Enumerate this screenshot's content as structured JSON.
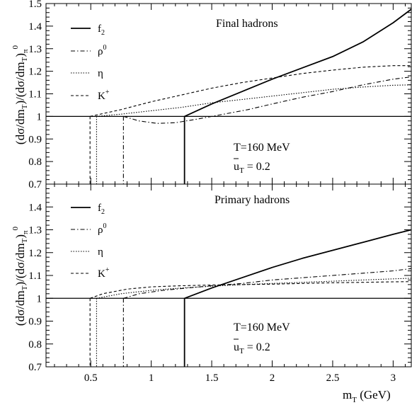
{
  "chart_data": [
    {
      "type": "line",
      "panel": "top",
      "title": "Final hadrons",
      "ylabel": "(dσ/dm_T)/(dσ/dm_T)_π^0",
      "xlim": [
        0.13,
        3.15
      ],
      "ylim": [
        0.7,
        1.5
      ],
      "yticks": [
        0.7,
        0.8,
        0.9,
        1.0,
        1.1,
        1.2,
        1.3,
        1.4,
        1.5
      ],
      "ytick_labels": [
        "0.7",
        "0.8",
        "0.9",
        "1",
        "1.1",
        "1.2",
        "1.3",
        "1.4",
        "1.5"
      ],
      "reference_line": 1.0,
      "annotations": [
        "T=160 MeV",
        "u_T = 0.2"
      ],
      "legend_placement": "top-left",
      "series": [
        {
          "name": "f_2",
          "style": "solid",
          "threshold": 1.275,
          "x": [
            1.275,
            1.5,
            1.75,
            2.0,
            2.25,
            2.5,
            2.75,
            3.0,
            3.15
          ],
          "y": [
            1.0,
            1.055,
            1.11,
            1.165,
            1.215,
            1.265,
            1.33,
            1.415,
            1.475
          ]
        },
        {
          "name": "ρ^0",
          "style": "dash-dot",
          "threshold": 0.77,
          "x": [
            0.77,
            0.9,
            1.05,
            1.2,
            1.4,
            1.6,
            1.8,
            2.0,
            2.25,
            2.5,
            2.75,
            3.0,
            3.15
          ],
          "y": [
            1.0,
            0.98,
            0.969,
            0.972,
            0.99,
            1.01,
            1.03,
            1.055,
            1.085,
            1.11,
            1.14,
            1.165,
            1.175
          ]
        },
        {
          "name": "η",
          "style": "dotted",
          "threshold": 0.548,
          "x": [
            0.548,
            0.75,
            1.0,
            1.25,
            1.5,
            1.75,
            2.0,
            2.25,
            2.5,
            2.75,
            3.0,
            3.15
          ],
          "y": [
            1.0,
            1.01,
            1.025,
            1.04,
            1.06,
            1.075,
            1.09,
            1.105,
            1.12,
            1.13,
            1.138,
            1.14
          ]
        },
        {
          "name": "K^+",
          "style": "dashed",
          "threshold": 0.494,
          "x": [
            0.494,
            0.75,
            1.0,
            1.25,
            1.5,
            1.75,
            2.0,
            2.25,
            2.5,
            2.75,
            3.0,
            3.15
          ],
          "y": [
            1.0,
            1.03,
            1.065,
            1.095,
            1.125,
            1.15,
            1.17,
            1.19,
            1.205,
            1.218,
            1.225,
            1.225
          ]
        }
      ]
    },
    {
      "type": "line",
      "panel": "bottom",
      "title": "Primary hadrons",
      "xlabel": "m_T (GeV)",
      "ylabel": "(dσ/dm_T)/(dσ/dm_T)_π^0",
      "xlim": [
        0.13,
        3.15
      ],
      "ylim": [
        0.7,
        1.5
      ],
      "xticks": [
        0.5,
        1.0,
        1.5,
        2.0,
        2.5,
        3.0
      ],
      "xtick_labels": [
        "0.5",
        "1",
        "1.5",
        "2",
        "2.5",
        "3"
      ],
      "yticks": [
        0.7,
        0.8,
        0.9,
        1.0,
        1.1,
        1.2,
        1.3,
        1.4
      ],
      "ytick_labels": [
        "0.7",
        "0.8",
        "0.9",
        "1",
        "1.1",
        "1.2",
        "1.3",
        "1.4"
      ],
      "reference_line": 1.0,
      "annotations": [
        "T=160 MeV",
        "u_T = 0.2"
      ],
      "legend_placement": "top-left",
      "series": [
        {
          "name": "f_2",
          "style": "solid",
          "threshold": 1.275,
          "x": [
            1.275,
            1.5,
            1.75,
            2.0,
            2.25,
            2.5,
            2.75,
            3.0,
            3.15
          ],
          "y": [
            1.0,
            1.045,
            1.09,
            1.135,
            1.175,
            1.21,
            1.245,
            1.28,
            1.3
          ]
        },
        {
          "name": "ρ^0",
          "style": "dash-dot",
          "threshold": 0.77,
          "x": [
            0.77,
            0.9,
            1.1,
            1.3,
            1.5,
            1.75,
            2.0,
            2.25,
            2.5,
            2.75,
            3.0,
            3.15
          ],
          "y": [
            1.0,
            1.02,
            1.035,
            1.045,
            1.055,
            1.065,
            1.08,
            1.09,
            1.1,
            1.11,
            1.12,
            1.13
          ]
        },
        {
          "name": "η",
          "style": "dotted",
          "threshold": 0.548,
          "x": [
            0.548,
            0.75,
            1.0,
            1.25,
            1.5,
            1.75,
            2.0,
            2.25,
            2.5,
            2.75,
            3.0,
            3.15
          ],
          "y": [
            1.0,
            1.02,
            1.035,
            1.045,
            1.053,
            1.06,
            1.065,
            1.07,
            1.075,
            1.08,
            1.085,
            1.088
          ]
        },
        {
          "name": "K^+",
          "style": "dashed",
          "threshold": 0.494,
          "x": [
            0.494,
            0.6,
            0.8,
            1.0,
            1.25,
            1.5,
            1.75,
            2.0,
            2.25,
            2.5,
            2.75,
            3.0,
            3.15
          ],
          "y": [
            1.0,
            1.02,
            1.04,
            1.05,
            1.055,
            1.058,
            1.06,
            1.062,
            1.065,
            1.068,
            1.07,
            1.072,
            1.073
          ]
        }
      ]
    }
  ]
}
